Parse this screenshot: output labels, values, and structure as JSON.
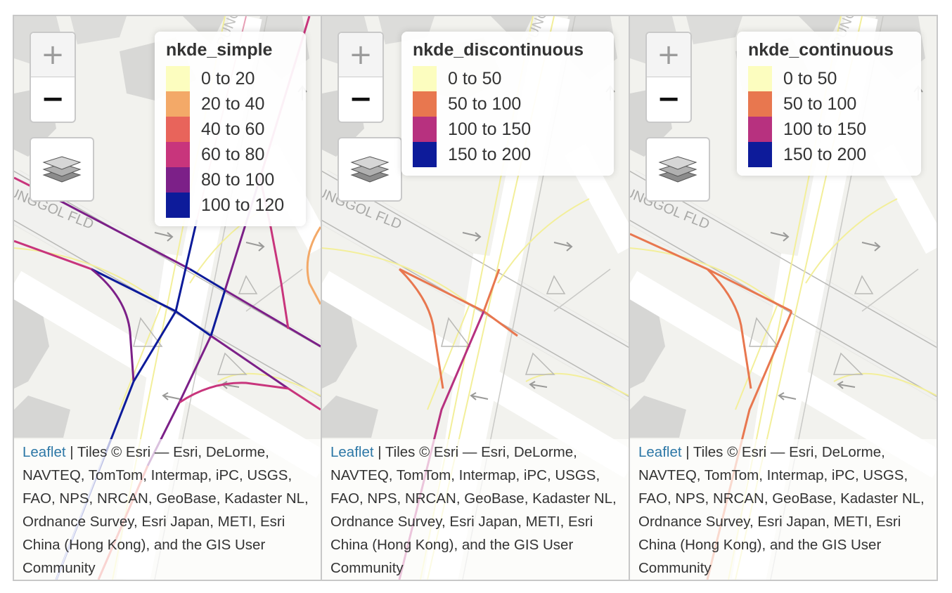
{
  "panels": [
    {
      "legend": {
        "title": "nkde_simple",
        "items": [
          {
            "label": "0 to 20",
            "color": "#fcfdbf"
          },
          {
            "label": "20 to 40",
            "color": "#f3a968"
          },
          {
            "label": "40 to 60",
            "color": "#e8645b"
          },
          {
            "label": "60 to 80",
            "color": "#c8357c"
          },
          {
            "label": "80 to 100",
            "color": "#7c2088"
          },
          {
            "label": "100 to 120",
            "color": "#0d1b9a"
          }
        ]
      }
    },
    {
      "legend": {
        "title": "nkde_discontinuous",
        "items": [
          {
            "label": "0 to 50",
            "color": "#fcfdbf"
          },
          {
            "label": "50 to 100",
            "color": "#e8774f"
          },
          {
            "label": "100 to 150",
            "color": "#b7317f"
          },
          {
            "label": "150 to 200",
            "color": "#0d1b9a"
          }
        ]
      }
    },
    {
      "legend": {
        "title": "nkde_continuous",
        "items": [
          {
            "label": "0 to 50",
            "color": "#fcfdbf"
          },
          {
            "label": "50 to 100",
            "color": "#e8774f"
          },
          {
            "label": "100 to 150",
            "color": "#b7317f"
          },
          {
            "label": "150 to 200",
            "color": "#0d1b9a"
          }
        ]
      }
    }
  ],
  "zoom": {
    "in": "+",
    "out": "−"
  },
  "attribution": {
    "link": "Leaflet",
    "text": " | Tiles © Esri — Esri, DeLorme, NAVTEQ, TomTom, Intermap, iPC, USGS, FAO, NPS, NRCAN, GeoBase, Kadaster NL, Ordnance Survey, Esri Japan, METI, Esri China (Hong Kong), and the GIS User Community"
  },
  "map_labels": {
    "street_1": "PUNGGOL RD",
    "street_2": "UNGGOL FLD"
  },
  "icons": [
    "layers-icon"
  ]
}
